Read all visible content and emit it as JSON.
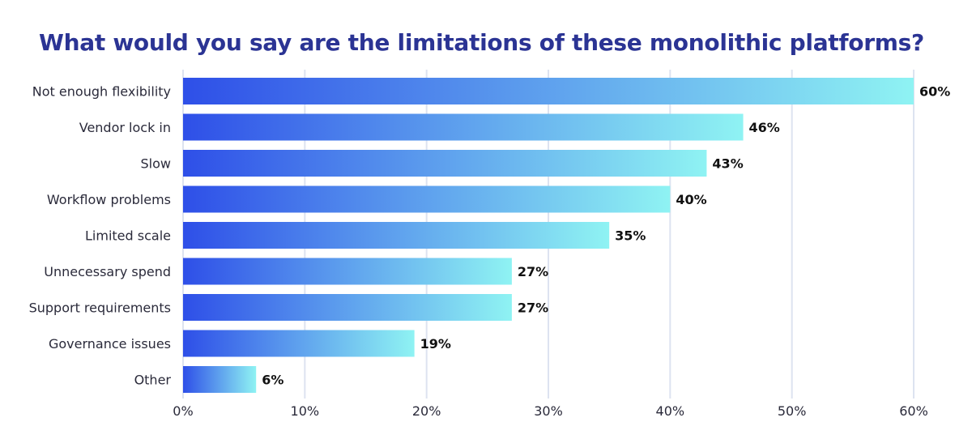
{
  "chart_data": {
    "type": "bar",
    "orientation": "horizontal",
    "title": "What would you say are the limitations of these monolithic platforms?",
    "categories": [
      "Not enough flexibility",
      "Vendor lock in",
      "Slow",
      "Workflow problems",
      "Limited scale",
      "Unnecessary spend",
      "Support requirements",
      "Governance issues",
      "Other"
    ],
    "values": [
      60,
      46,
      43,
      40,
      35,
      27,
      27,
      19,
      6
    ],
    "value_labels": [
      "60%",
      "46%",
      "43%",
      "40%",
      "35%",
      "27%",
      "27%",
      "19%",
      "6%"
    ],
    "xlim": [
      0,
      60
    ],
    "ticks": [
      0,
      10,
      20,
      30,
      40,
      50,
      60
    ],
    "tick_labels": [
      "0%",
      "10%",
      "20%",
      "30%",
      "40%",
      "50%",
      "60%"
    ],
    "grid": true,
    "colors": {
      "bar_start": "#2e4fe8",
      "bar_end": "#8ff3f3",
      "title": "#2b3494",
      "grid": "#dde3f0"
    }
  }
}
